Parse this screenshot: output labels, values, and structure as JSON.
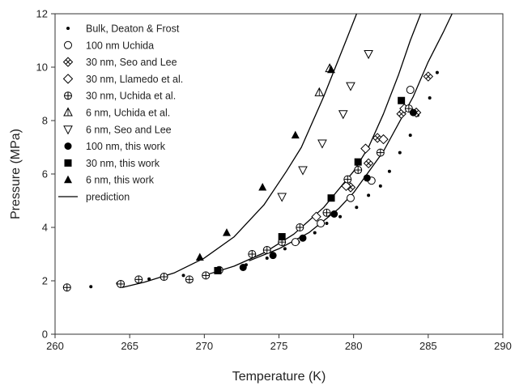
{
  "chart_data": {
    "type": "scatter",
    "title": "",
    "xlabel": "Temperature (K)",
    "ylabel": "Pressure (MPa)",
    "xlim": [
      260,
      290
    ],
    "ylim": [
      0,
      12
    ],
    "xticks": [
      "260",
      "265",
      "270",
      "275",
      "280",
      "285",
      "290"
    ],
    "yticks": [
      "0",
      "2",
      "4",
      "6",
      "8",
      "10",
      "12"
    ],
    "grid": false,
    "legend_position": "top-left",
    "series": [
      {
        "name": "Bulk, Deaton & Frost",
        "marker": "small-dot",
        "points": [
          [
            262.4,
            1.78
          ],
          [
            264.2,
            1.9
          ],
          [
            266.3,
            2.07
          ],
          [
            268.6,
            2.2
          ],
          [
            270.8,
            2.45
          ],
          [
            272.8,
            2.6
          ],
          [
            274.2,
            2.85
          ],
          [
            275.4,
            3.2
          ],
          [
            276.3,
            3.45
          ],
          [
            277.4,
            3.8
          ],
          [
            278.2,
            4.15
          ],
          [
            279.1,
            4.4
          ],
          [
            280.2,
            4.75
          ],
          [
            281.0,
            5.2
          ],
          [
            281.8,
            5.55
          ],
          [
            282.4,
            6.1
          ],
          [
            283.1,
            6.8
          ],
          [
            283.8,
            7.45
          ],
          [
            284.3,
            8.2
          ],
          [
            285.1,
            8.85
          ],
          [
            285.6,
            9.8
          ]
        ]
      },
      {
        "name": "100 nm Uchida",
        "marker": "open-circle",
        "points": [
          [
            276.1,
            3.45
          ],
          [
            277.8,
            4.15
          ],
          [
            279.8,
            5.1
          ],
          [
            281.2,
            5.75
          ],
          [
            283.8,
            9.15
          ]
        ]
      },
      {
        "name": "30 nm, Seo and Lee",
        "marker": "diamond-x",
        "points": [
          [
            279.8,
            5.5
          ],
          [
            281.0,
            6.4
          ],
          [
            281.6,
            7.35
          ],
          [
            283.2,
            8.25
          ],
          [
            284.2,
            8.3
          ],
          [
            285.0,
            9.65
          ]
        ]
      },
      {
        "name": "30 nm, Llamedo et al.",
        "marker": "open-diamond",
        "points": [
          [
            277.5,
            4.4
          ],
          [
            279.5,
            5.55
          ],
          [
            280.8,
            6.95
          ],
          [
            282.0,
            7.3
          ],
          [
            283.4,
            8.45
          ]
        ]
      },
      {
        "name": "30 nm, Uchida et al.",
        "marker": "circle-plus",
        "points": [
          [
            260.8,
            1.75
          ],
          [
            264.4,
            1.88
          ],
          [
            265.6,
            2.05
          ],
          [
            267.3,
            2.15
          ],
          [
            269.0,
            2.05
          ],
          [
            270.1,
            2.2
          ],
          [
            271.0,
            2.4
          ],
          [
            273.2,
            3.0
          ],
          [
            274.2,
            3.15
          ],
          [
            275.2,
            3.45
          ],
          [
            276.4,
            4.0
          ],
          [
            278.2,
            4.55
          ],
          [
            279.6,
            5.8
          ],
          [
            280.3,
            6.15
          ],
          [
            281.8,
            6.8
          ],
          [
            283.7,
            8.45
          ]
        ]
      },
      {
        "name": "6 nm, Uchida et al.",
        "marker": "open-triangle-up",
        "points": [
          [
            277.7,
            9.05
          ],
          [
            278.4,
            9.95
          ]
        ]
      },
      {
        "name": "6 nm, Seo and Lee",
        "marker": "open-triangle-down",
        "points": [
          [
            275.2,
            5.15
          ],
          [
            276.6,
            6.15
          ],
          [
            277.9,
            7.15
          ],
          [
            279.3,
            8.25
          ],
          [
            279.8,
            9.3
          ],
          [
            281.0,
            10.5
          ]
        ]
      },
      {
        "name": "100 nm, this work",
        "marker": "filled-circle",
        "points": [
          [
            272.6,
            2.5
          ],
          [
            274.6,
            2.95
          ],
          [
            276.6,
            3.6
          ],
          [
            278.7,
            4.5
          ],
          [
            280.9,
            5.85
          ],
          [
            284.0,
            8.3
          ]
        ]
      },
      {
        "name": "30 nm, this work",
        "marker": "filled-square",
        "points": [
          [
            270.9,
            2.38
          ],
          [
            275.2,
            3.65
          ],
          [
            278.5,
            5.1
          ],
          [
            280.3,
            6.45
          ],
          [
            283.2,
            8.75
          ]
        ]
      },
      {
        "name": "6 nm, this work",
        "marker": "filled-triangle",
        "points": [
          [
            269.7,
            2.88
          ],
          [
            271.5,
            3.8
          ],
          [
            273.9,
            5.5
          ],
          [
            276.1,
            7.45
          ],
          [
            278.5,
            9.9
          ]
        ]
      },
      {
        "name": "prediction",
        "marker": "line",
        "curves": [
          [
            [
              264.5,
              1.75
            ],
            [
              266,
              1.95
            ],
            [
              268,
              2.3
            ],
            [
              270,
              2.85
            ],
            [
              272,
              3.65
            ],
            [
              274,
              4.85
            ],
            [
              275.5,
              6.1
            ],
            [
              276.5,
              7.0
            ],
            [
              278,
              8.9
            ],
            [
              279.5,
              11.0
            ],
            [
              280.2,
              12.0
            ]
          ],
          [
            [
              270,
              2.2
            ],
            [
              272,
              2.55
            ],
            [
              274,
              3.05
            ],
            [
              276,
              3.75
            ],
            [
              278,
              4.75
            ],
            [
              280,
              6.1
            ],
            [
              281,
              7.0
            ],
            [
              282,
              8.25
            ],
            [
              283,
              9.7
            ],
            [
              283.8,
              11.0
            ],
            [
              284.5,
              12.0
            ]
          ],
          [
            [
              273,
              2.75
            ],
            [
              275,
              3.2
            ],
            [
              277,
              3.8
            ],
            [
              279,
              4.7
            ],
            [
              280,
              5.3
            ],
            [
              282,
              6.85
            ],
            [
              284,
              8.9
            ],
            [
              285,
              10.2
            ],
            [
              286,
              11.3
            ],
            [
              286.6,
              12.0
            ]
          ]
        ]
      }
    ]
  }
}
